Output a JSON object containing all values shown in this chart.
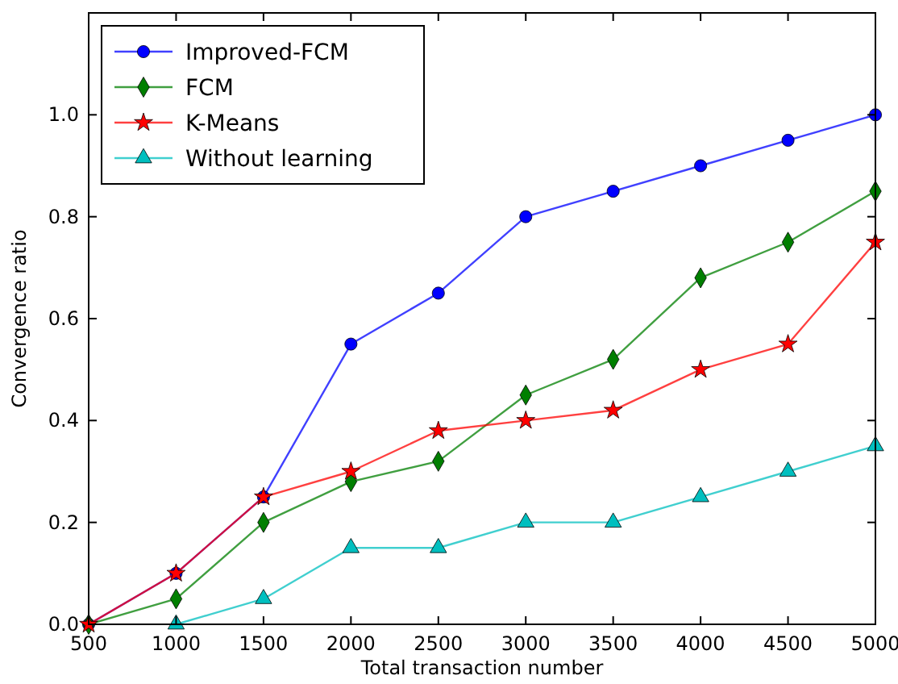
{
  "chart_data": {
    "type": "line",
    "xlabel": "Total transaction number",
    "ylabel": "Convergence ratio",
    "x": [
      500,
      1000,
      1500,
      2000,
      2500,
      3000,
      3500,
      4000,
      4500,
      5000
    ],
    "series": [
      {
        "name": "Improved-FCM",
        "color": "#0000ff",
        "marker": "circle",
        "values": [
          0,
          0.1,
          0.25,
          0.55,
          0.65,
          0.8,
          0.85,
          0.9,
          0.95,
          1.0
        ]
      },
      {
        "name": "FCM",
        "color": "#007f00",
        "marker": "diamond",
        "values": [
          0,
          0.05,
          0.2,
          0.28,
          0.32,
          0.45,
          0.52,
          0.68,
          0.75,
          0.85
        ]
      },
      {
        "name": "K-Means",
        "color": "#ff0000",
        "marker": "star",
        "values": [
          0,
          0.1,
          0.25,
          0.3,
          0.38,
          0.4,
          0.42,
          0.5,
          0.55,
          0.75
        ]
      },
      {
        "name": "Without learning",
        "color": "#00bfbf",
        "marker": "triangle",
        "x": [
          1000,
          1500,
          2000,
          2500,
          3000,
          3500,
          4000,
          4500,
          5000
        ],
        "values": [
          0,
          0.05,
          0.15,
          0.15,
          0.2,
          0.2,
          0.25,
          0.3,
          0.35
        ]
      }
    ],
    "xlim": [
      500,
      5000
    ],
    "xticks": [
      500,
      1000,
      1500,
      2000,
      2500,
      3000,
      3500,
      4000,
      4500,
      5000
    ],
    "ylim": [
      0,
      1.2
    ],
    "yticks": [
      {
        "value": 0,
        "label": "0.0"
      },
      {
        "value": 0.2,
        "label": "0.2"
      },
      {
        "value": 0.4,
        "label": "0.4"
      },
      {
        "value": 0.6,
        "label": "0.6"
      },
      {
        "value": 0.8,
        "label": "0.8"
      },
      {
        "value": 1.0,
        "label": "1.0"
      }
    ],
    "grid": false,
    "legend": "top left",
    "line_style": "solid"
  }
}
